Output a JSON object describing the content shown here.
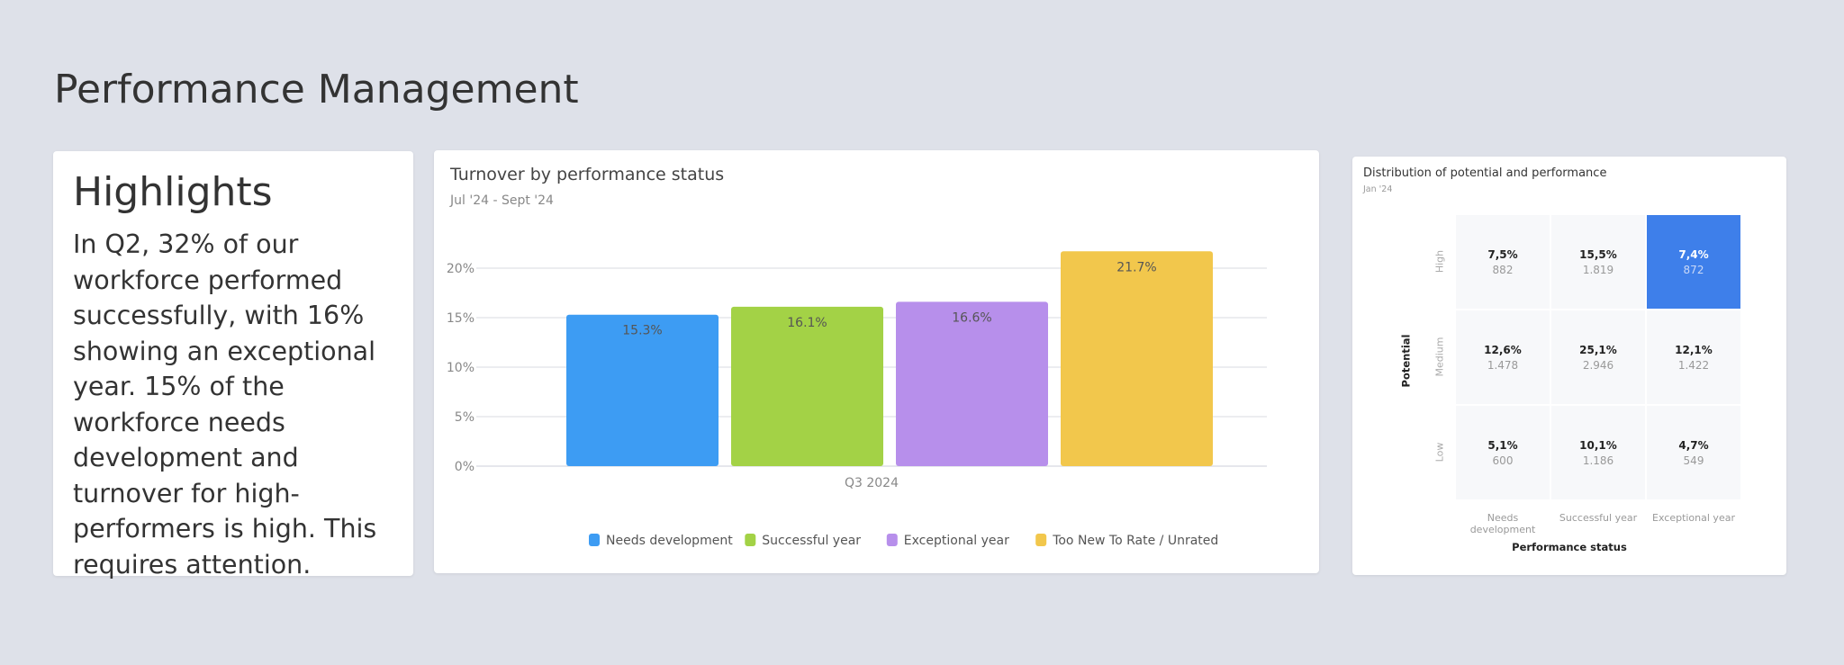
{
  "page_title": "Performance Management",
  "highlights": {
    "heading": "Highlights",
    "body": "In Q2, 32% of our workforce performed successfully, with 16% showing an exceptional year. 15% of the workforce needs development and turnover for  high-performers is high. This requires attention."
  },
  "chart_data": [
    {
      "type": "bar",
      "title": "Turnover by performance status",
      "subtitle": "Jul '24 - Sept '24",
      "categories": [
        "Q3 2024"
      ],
      "series": [
        {
          "name": "Needs development",
          "values": [
            15.3
          ],
          "label": "15.3%",
          "color": "#3d9cf3"
        },
        {
          "name": "Successful year",
          "values": [
            16.1
          ],
          "label": "16.1%",
          "color": "#a3d246"
        },
        {
          "name": "Exceptional year",
          "values": [
            16.6
          ],
          "label": "16.6%",
          "color": "#b78feb"
        },
        {
          "name": "Too New To Rate / Unrated",
          "values": [
            21.7
          ],
          "label": "21.7%",
          "color": "#f2c74c"
        }
      ],
      "ylim": [
        0,
        20
      ],
      "yticks": [
        "0%",
        "5%",
        "10%",
        "15%",
        "20%"
      ],
      "grid": true,
      "legend": "bottom"
    },
    {
      "type": "heatmap",
      "title": "Distribution of potential and performance",
      "subtitle": "Jan '24",
      "xlabel": "Performance status",
      "ylabel": "Potential",
      "columns": [
        "Needs development",
        "Successful year",
        "Exceptional year"
      ],
      "rows": [
        "High",
        "Medium",
        "Low"
      ],
      "cells": [
        [
          {
            "pct": "7,5%",
            "count": "882"
          },
          {
            "pct": "15,5%",
            "count": "1.819"
          },
          {
            "pct": "7,4%",
            "count": "872",
            "highlight": true
          }
        ],
        [
          {
            "pct": "12,6%",
            "count": "1.478"
          },
          {
            "pct": "25,1%",
            "count": "2.946"
          },
          {
            "pct": "12,1%",
            "count": "1.422"
          }
        ],
        [
          {
            "pct": "5,1%",
            "count": "600"
          },
          {
            "pct": "10,1%",
            "count": "1.186"
          },
          {
            "pct": "4,7%",
            "count": "549"
          }
        ]
      ],
      "highlight_color": "#3e7fea"
    }
  ]
}
